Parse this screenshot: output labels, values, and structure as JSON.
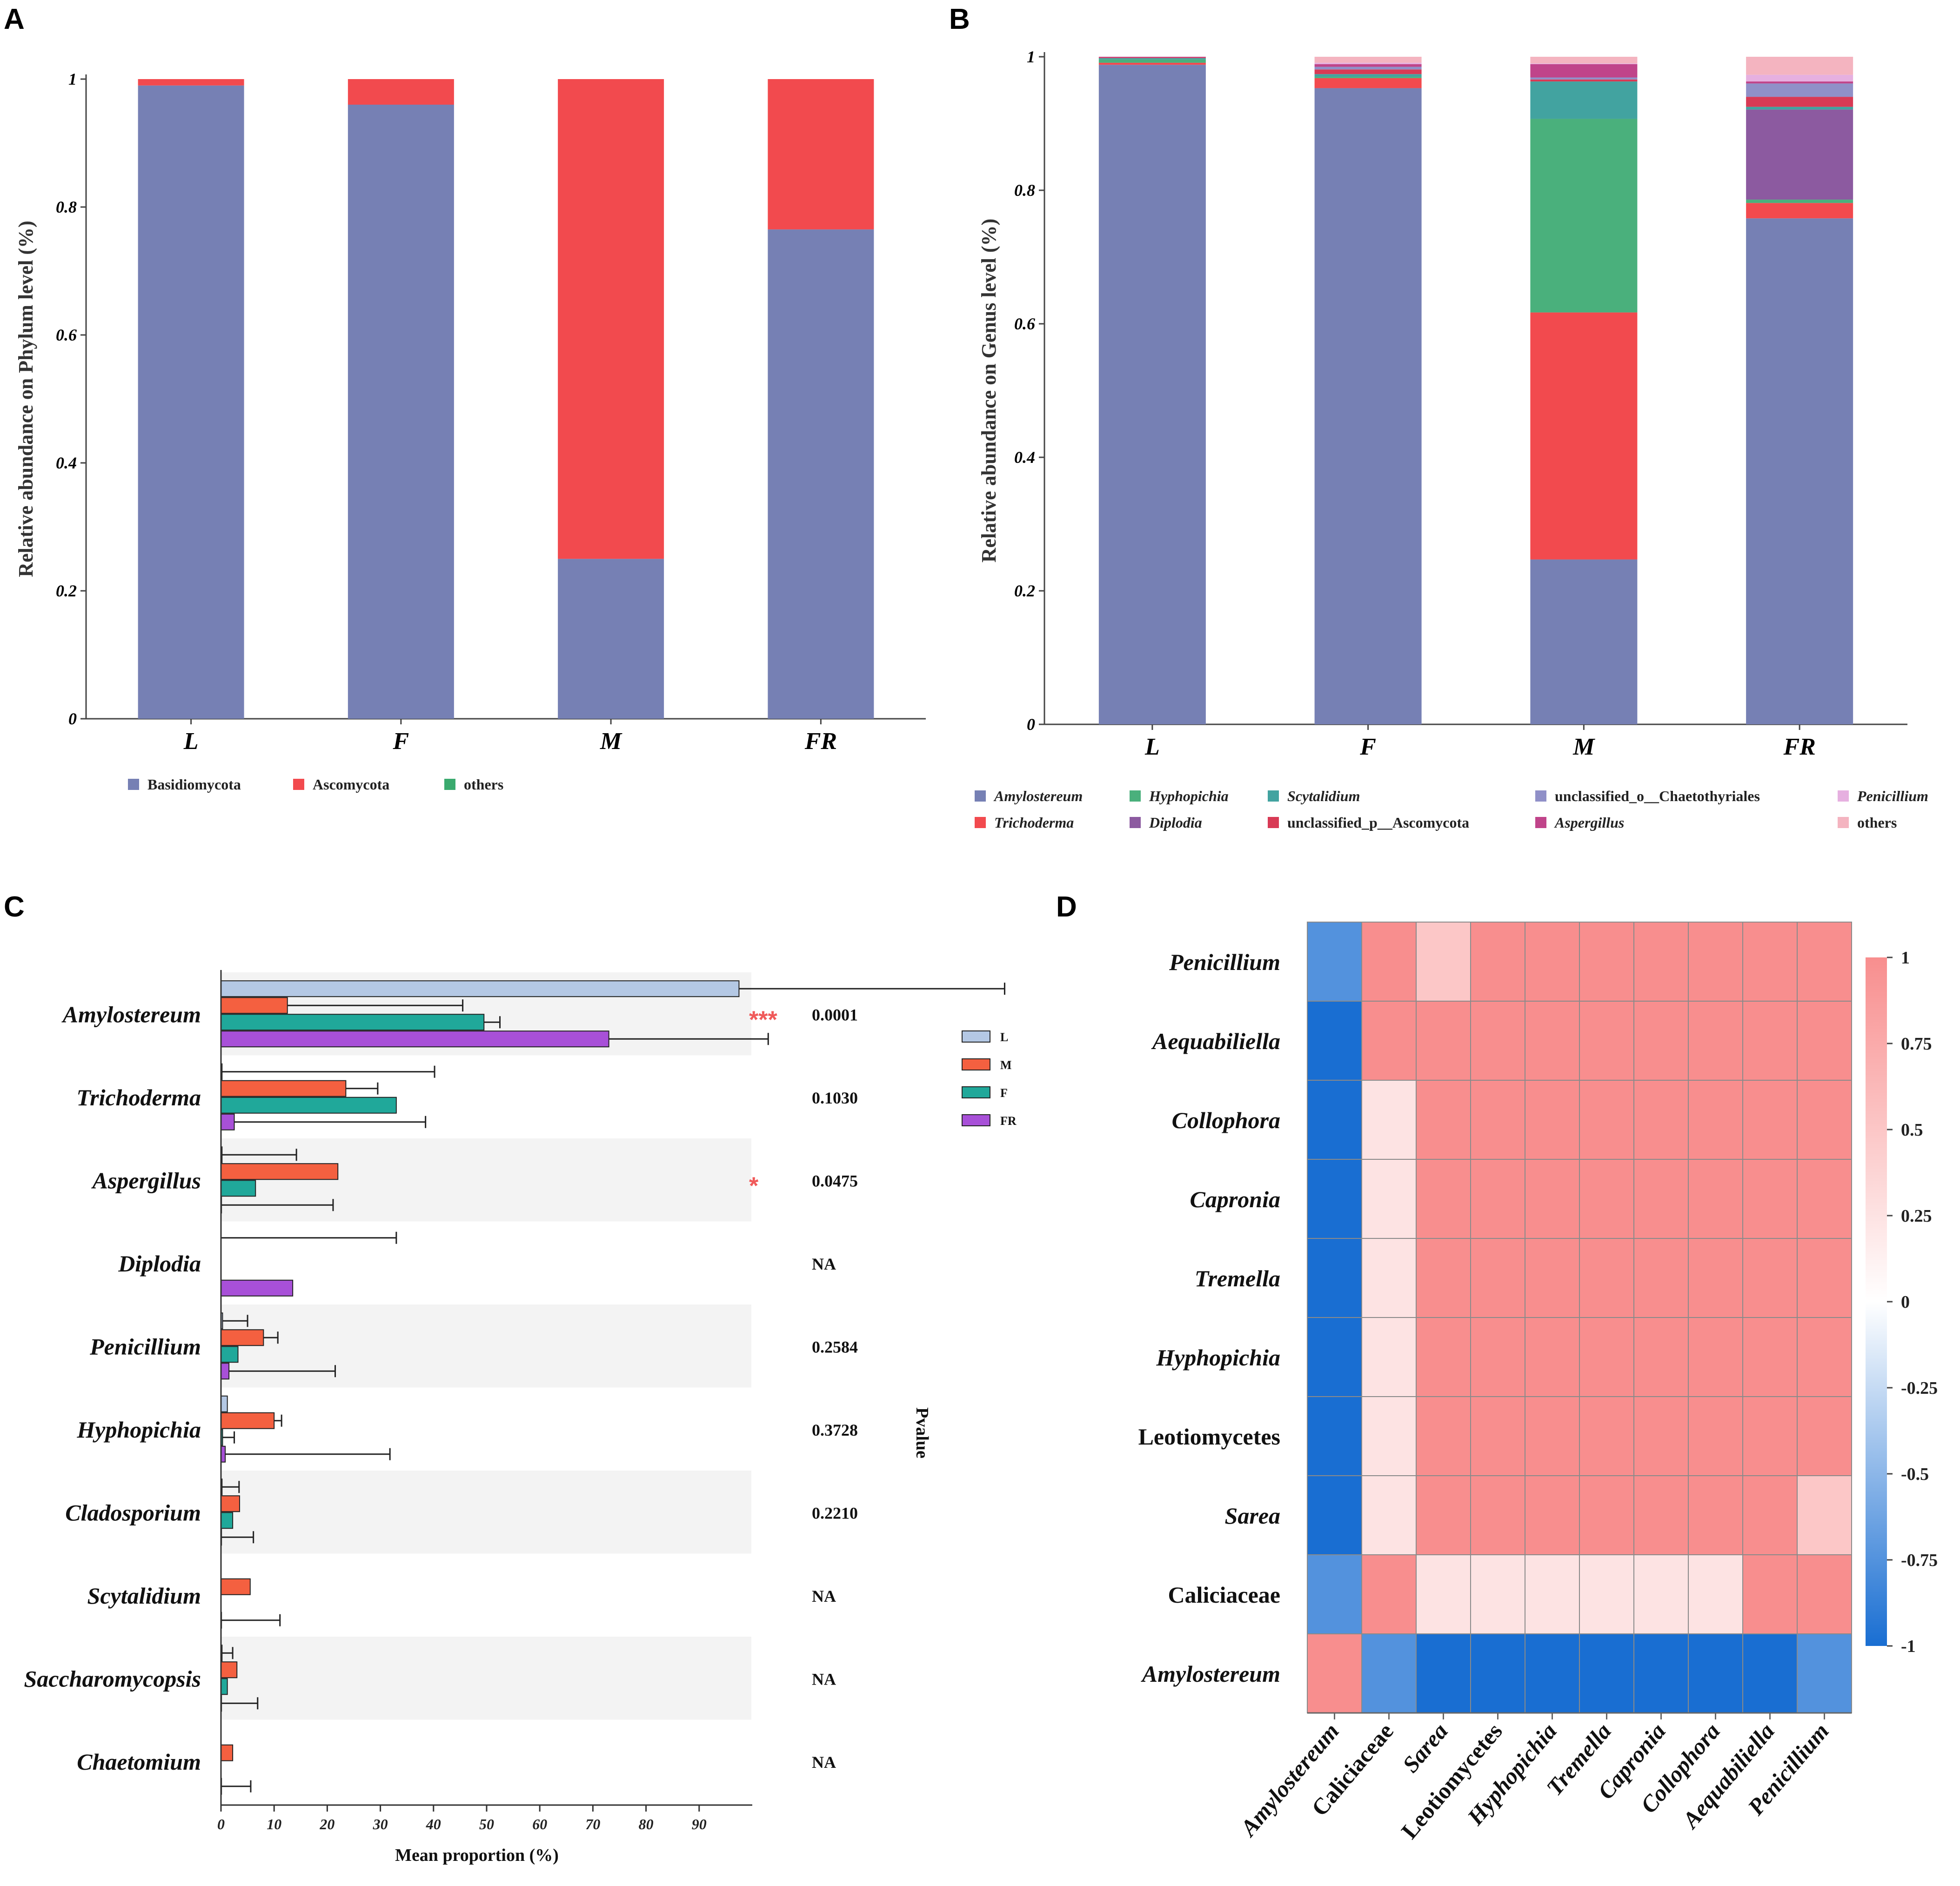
{
  "panels": {
    "A": "A",
    "B": "B",
    "C": "C",
    "D": "D"
  },
  "colors": {
    "Basidiomycota": "#7680b4",
    "Ascomycota": "#f24a4e",
    "others_green": "#3aaa6e",
    "Amylostereum": "#7680b4",
    "Trichoderma": "#f24a4e",
    "Hyphopichia": "#4ab07c",
    "Diplodia": "#8c5aa0",
    "Scytalidium": "#42a3a0",
    "unclassified_p__Ascomycota": "#d83a55",
    "unclassified_o__Chaetothyriales": "#9090c8",
    "Aspergillus": "#c0448a",
    "Penicillium": "#e6b0e0",
    "others_pink": "#f4b4c0",
    "L": "#b4c8e4",
    "M": "#f46040",
    "F": "#20a89a",
    "FR": "#a850d8"
  },
  "chart_data": [
    {
      "type": "bar",
      "subtype": "stacked",
      "panel": "A",
      "categories": [
        "L",
        "F",
        "M",
        "FR"
      ],
      "series": [
        {
          "name": "Basidiomycota",
          "values": [
            0.99,
            0.96,
            0.25,
            0.765
          ]
        },
        {
          "name": "Ascomycota",
          "values": [
            0.01,
            0.04,
            0.75,
            0.235
          ]
        },
        {
          "name": "others",
          "values": [
            0,
            0,
            0,
            0
          ]
        }
      ],
      "ylabel": "Relative abundance on Phylum level (%)",
      "ylim": [
        0,
        1
      ],
      "yticks": [
        "0",
        "0.2",
        "0.4",
        "0.6",
        "0.8",
        "1"
      ]
    },
    {
      "type": "bar",
      "subtype": "stacked",
      "panel": "B",
      "categories": [
        "L",
        "F",
        "M",
        "FR"
      ],
      "series": [
        {
          "name": "Amylostereum",
          "values": [
            0.988,
            0.953,
            0.247,
            0.758
          ]
        },
        {
          "name": "Trichoderma",
          "values": [
            0.003,
            0.015,
            0.37,
            0.023
          ]
        },
        {
          "name": "Hyphopichia",
          "values": [
            0.005,
            0.002,
            0.29,
            0.005
          ]
        },
        {
          "name": "Diplodia",
          "values": [
            0,
            0,
            0,
            0.135
          ]
        },
        {
          "name": "Scytalidium",
          "values": [
            0.002,
            0.004,
            0.056,
            0.004
          ]
        },
        {
          "name": "unclassified_p__Ascomycota",
          "values": [
            0.001,
            0.007,
            0.003,
            0.015
          ]
        },
        {
          "name": "unclassified_o__Chaetothyriales",
          "values": [
            0,
            0.004,
            0.003,
            0.02
          ]
        },
        {
          "name": "Aspergillus",
          "values": [
            0.001,
            0.004,
            0.02,
            0.003
          ]
        },
        {
          "name": "Penicillium",
          "values": [
            0,
            0.002,
            0.001,
            0.01
          ]
        },
        {
          "name": "others",
          "values": [
            0,
            0.009,
            0.01,
            0.027
          ]
        }
      ],
      "ylabel": "Relative abundance on Genus level (%)",
      "ylim": [
        0,
        1
      ],
      "yticks": [
        "0",
        "0.2",
        "0.4",
        "0.6",
        "0.8",
        "1"
      ]
    },
    {
      "type": "bar",
      "subtype": "horizontal-grouped-errorbar",
      "panel": "C",
      "groups": [
        "L",
        "M",
        "F",
        "FR"
      ],
      "taxa": [
        {
          "name": "Amylostereum",
          "pvalue": "0.0001",
          "sig": "***",
          "values": [
            97.5,
            12.5,
            49.5,
            73
          ],
          "errors": [
            50,
            33,
            3,
            30
          ]
        },
        {
          "name": "Trichoderma",
          "pvalue": "0.1030",
          "sig": "",
          "values": [
            0.2,
            23.5,
            33,
            2.5
          ],
          "errors": [
            40,
            6,
            0,
            36
          ]
        },
        {
          "name": "Aspergillus",
          "pvalue": "0.0475",
          "sig": "*",
          "values": [
            0.2,
            22,
            6.5,
            0.1
          ],
          "errors": [
            14,
            0,
            0,
            21
          ]
        },
        {
          "name": "Diplodia",
          "pvalue": "NA",
          "sig": "",
          "values": [
            0,
            0,
            0,
            13.5
          ],
          "errors": [
            33,
            0,
            0,
            0
          ]
        },
        {
          "name": "Penicillium",
          "pvalue": "0.2584",
          "sig": "",
          "values": [
            0.3,
            8,
            3.2,
            1.5
          ],
          "errors": [
            4.7,
            2.7,
            0,
            20
          ]
        },
        {
          "name": "Hyphopichia",
          "pvalue": "0.3728",
          "sig": "",
          "values": [
            1.2,
            10,
            0.3,
            0.8
          ],
          "errors": [
            0,
            1.4,
            2.2,
            31
          ]
        },
        {
          "name": "Cladosporium",
          "pvalue": "0.2210",
          "sig": "",
          "values": [
            0.2,
            3.5,
            2.2,
            0.1
          ],
          "errors": [
            3.2,
            0,
            0,
            6
          ]
        },
        {
          "name": "Scytalidium",
          "pvalue": "NA",
          "sig": "",
          "values": [
            0,
            5.5,
            0,
            0.1
          ],
          "errors": [
            0,
            0,
            0,
            11
          ]
        },
        {
          "name": "Saccharomycopsis",
          "pvalue": "NA",
          "sig": "",
          "values": [
            0.2,
            3,
            1.2,
            0.1
          ],
          "errors": [
            2,
            0,
            0,
            6.8
          ]
        },
        {
          "name": "Chaetomium",
          "pvalue": "NA",
          "sig": "",
          "values": [
            0,
            2.2,
            0,
            0.1
          ],
          "errors": [
            0,
            0,
            0,
            5.5
          ]
        }
      ],
      "xlabel": "Mean proportion (%)",
      "pvalue_label": "Pvalue",
      "xticks": [
        "0",
        "10",
        "20",
        "30",
        "40",
        "50",
        "60",
        "70",
        "80",
        "90"
      ],
      "xlim": [
        0,
        100
      ]
    },
    {
      "type": "heatmap",
      "panel": "D",
      "rows": [
        "Penicillium",
        "Aequabiliella",
        "Collophora",
        "Capronia",
        "Tremella",
        "Hyphopichia",
        "Leotiomycetes",
        "Sarea",
        "Caliciaceae",
        "Amylostereum"
      ],
      "row_italic": [
        true,
        true,
        true,
        true,
        true,
        true,
        false,
        true,
        false,
        true
      ],
      "columns": [
        "Amylostereum",
        "Caliciaceae",
        "Sarea",
        "Leotiomycetes",
        "Hyphopichia",
        "Tremella",
        "Capronia",
        "Collophora",
        "Aequabiliella",
        "Penicillium"
      ],
      "col_italic": [
        true,
        false,
        true,
        false,
        true,
        true,
        true,
        true,
        true,
        true
      ],
      "values": [
        [
          -0.6,
          0.8,
          0.4,
          0.8,
          0.8,
          0.8,
          0.8,
          0.8,
          0.8,
          1
        ],
        [
          -1,
          0.8,
          0.8,
          0.8,
          0.8,
          0.8,
          0.8,
          0.8,
          1,
          0.8
        ],
        [
          -0.8,
          0.2,
          0.8,
          0.8,
          0.8,
          0.8,
          0.8,
          1,
          0.8,
          0.8
        ],
        [
          -0.8,
          0.2,
          0.8,
          0.8,
          0.8,
          0.8,
          1,
          0.8,
          0.8,
          0.8
        ],
        [
          -0.8,
          0.2,
          0.8,
          0.8,
          0.8,
          1,
          0.8,
          0.8,
          0.8,
          0.8
        ],
        [
          -0.8,
          0.2,
          0.8,
          0.8,
          1,
          0.8,
          0.8,
          0.8,
          0.8,
          0.8
        ],
        [
          -0.8,
          0.2,
          0.8,
          1,
          0.8,
          0.8,
          0.8,
          0.8,
          0.8,
          0.8
        ],
        [
          -1,
          0.2,
          1,
          0.8,
          0.8,
          0.8,
          0.8,
          0.8,
          0.8,
          0.4
        ],
        [
          -0.6,
          1,
          0.2,
          0.2,
          0.2,
          0.2,
          0.2,
          0.2,
          0.8,
          0.8
        ],
        [
          1,
          -0.6,
          -1,
          -0.8,
          -0.8,
          -0.8,
          -0.8,
          -0.8,
          -1,
          -0.6
        ]
      ],
      "colorbar_ticks": [
        "1",
        "0.75",
        "0.5",
        "0.25",
        "0",
        "-0.25",
        "-0.5",
        "-0.75",
        "-1"
      ],
      "vmin": -1,
      "vmax": 1
    }
  ]
}
